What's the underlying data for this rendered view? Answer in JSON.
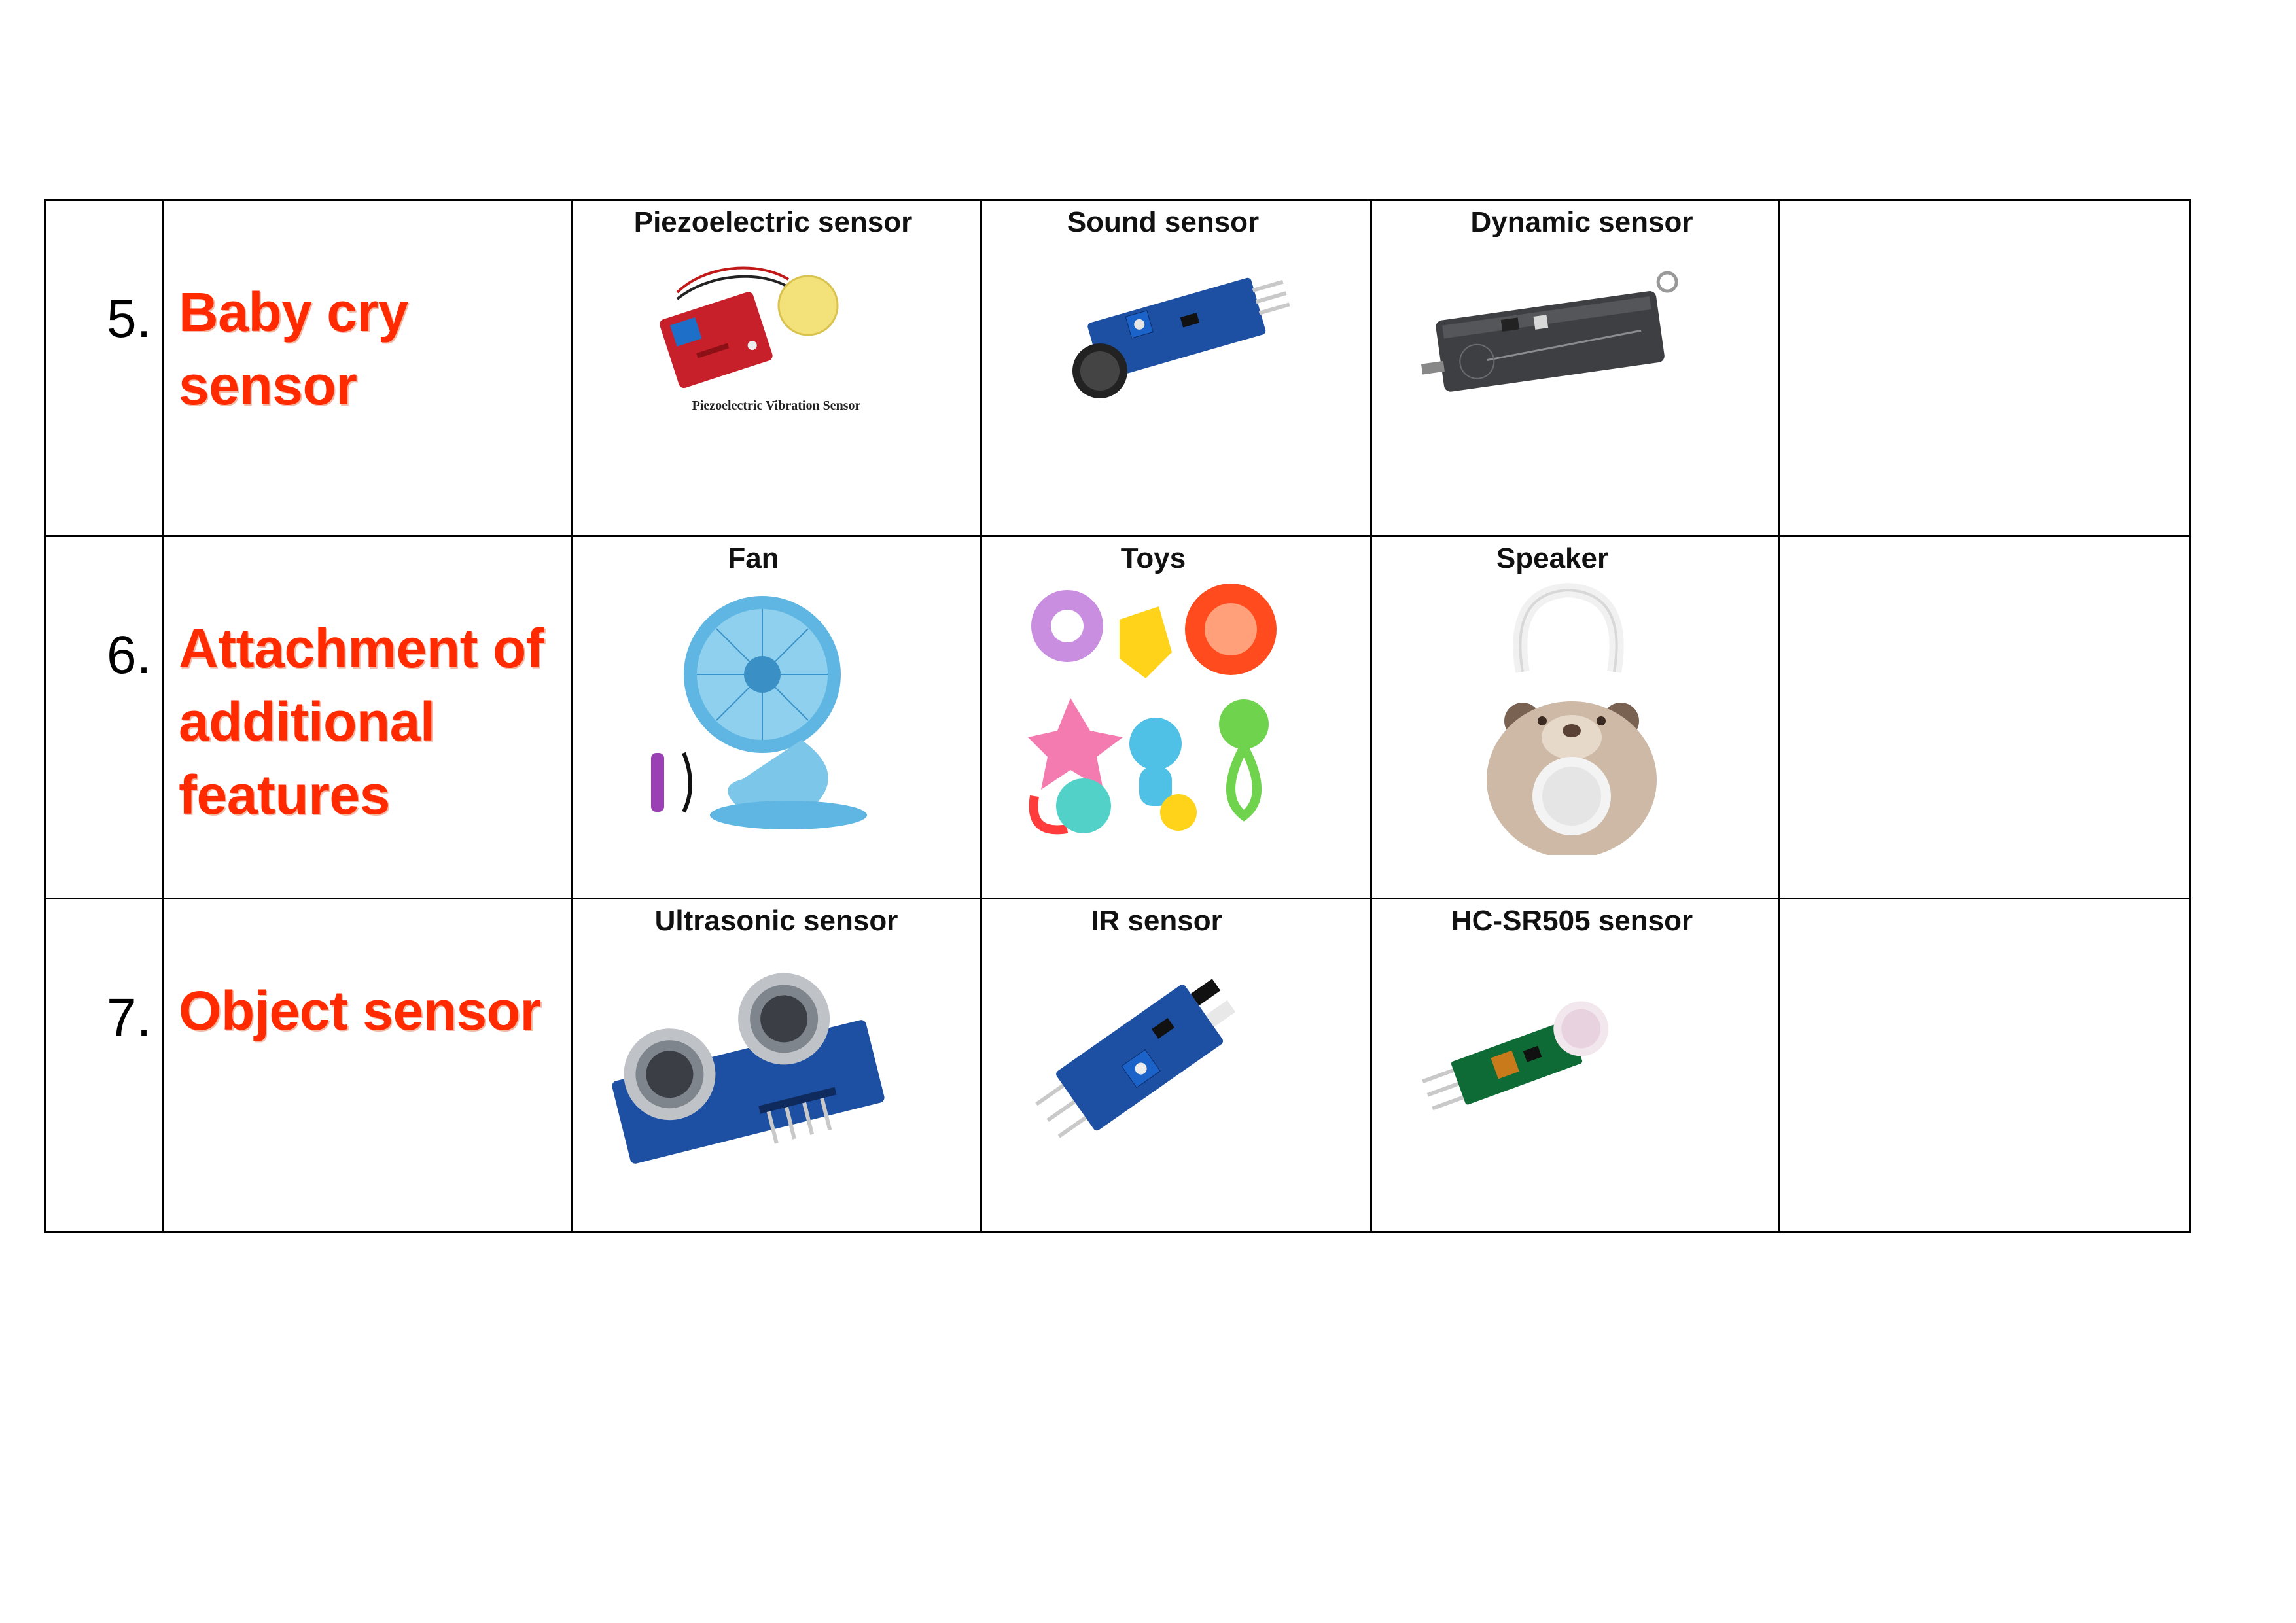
{
  "rows": [
    {
      "number": "5.",
      "title_lines": [
        "Baby cry",
        "sensor"
      ],
      "items": [
        {
          "label": "Piezoelectric sensor",
          "image_text": "Piezoelectric Vibration Sensor"
        },
        {
          "label": "Sound sensor"
        },
        {
          "label": "Dynamic sensor"
        }
      ]
    },
    {
      "number": "6.",
      "title_lines": [
        "Attachment of",
        "additional",
        "features"
      ],
      "items": [
        {
          "label": "Fan"
        },
        {
          "label": "Toys"
        },
        {
          "label": "Speaker"
        }
      ]
    },
    {
      "number": "7.",
      "title_lines": [
        "Object sensor"
      ],
      "items": [
        {
          "label": "Ultrasonic sensor"
        },
        {
          "label": "IR sensor"
        },
        {
          "label": "HC-SR505 sensor"
        }
      ]
    }
  ],
  "colors": {
    "title": "#ff2a00",
    "border": "#000000",
    "pcb_blue": "#1d4fa3",
    "pcb_red": "#c8202a"
  },
  "icons": [
    "piezo-sensor-board",
    "sound-sensor-board",
    "dynamic-sensor-device",
    "clip-fan",
    "baby-toys-set",
    "bear-speaker",
    "ultrasonic-module",
    "ir-sensor-module",
    "pir-hc-sr505-module"
  ]
}
